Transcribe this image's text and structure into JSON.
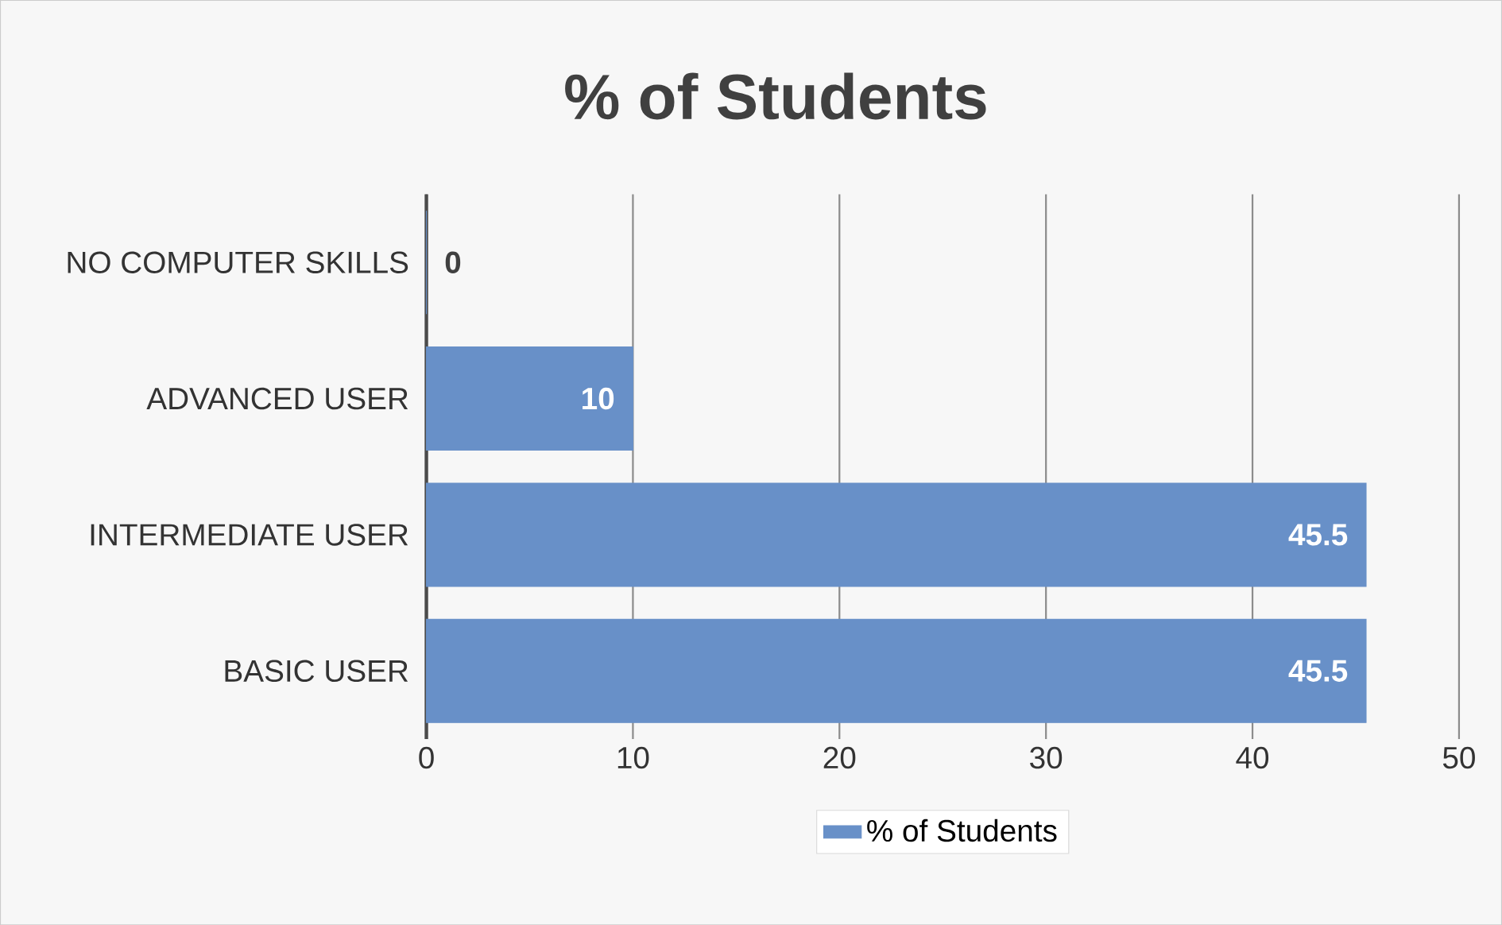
{
  "chart_data": {
    "type": "bar",
    "orientation": "horizontal",
    "title": "% of Students",
    "categories": [
      "NO COMPUTER SKILLS",
      "ADVANCED USER",
      "INTERMEDIATE USER",
      "BASIC USER"
    ],
    "series": [
      {
        "name": "% of Students",
        "color": "#6890c8",
        "values": [
          0,
          10,
          45.5,
          45.5
        ]
      }
    ],
    "xlim": [
      0,
      50
    ],
    "xticks": [
      0,
      10,
      20,
      30,
      40,
      50
    ],
    "grid": "x",
    "legend": "bottom",
    "data_labels": true
  }
}
